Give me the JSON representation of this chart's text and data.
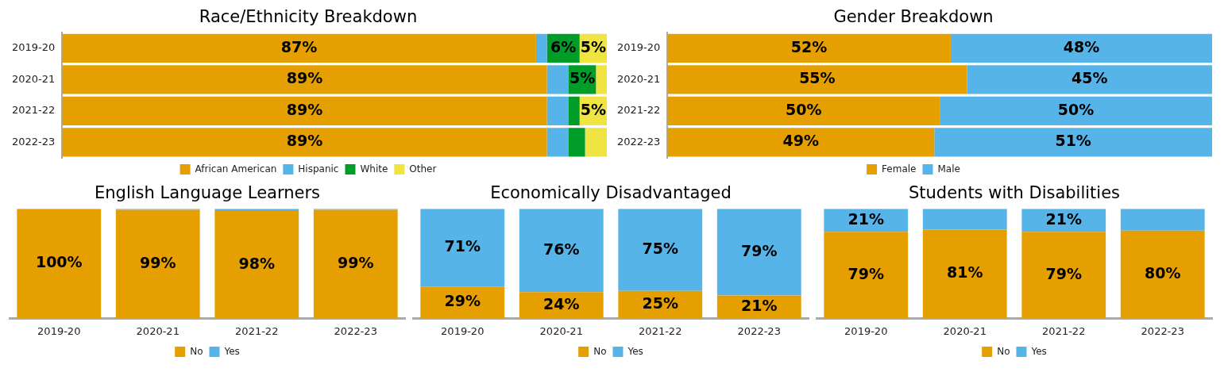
{
  "chart_data": [
    {
      "type": "bar",
      "title": "Race/Ethnicity Breakdown",
      "orientation": "horizontal",
      "stacked": true,
      "categories": [
        "2019-20",
        "2020-21",
        "2021-22",
        "2022-23"
      ],
      "xlim": [
        0,
        100
      ],
      "tick_labels": "y",
      "legend": "bottom",
      "grid": false,
      "series": [
        {
          "name": "African American",
          "color": "#e69f00",
          "values": [
            87,
            89,
            89,
            89
          ],
          "value_labels": [
            "87%",
            "89%",
            "89%",
            "89%"
          ]
        },
        {
          "name": "Hispanic",
          "color": "#56b4e9",
          "values": [
            2,
            4,
            4,
            4
          ],
          "value_labels": [
            null,
            null,
            null,
            null
          ]
        },
        {
          "name": "White",
          "color": "#009e28",
          "values": [
            6,
            5,
            2,
            3
          ],
          "value_labels": [
            "6%",
            "5%",
            null,
            null
          ]
        },
        {
          "name": "Other",
          "color": "#f0e442",
          "values": [
            5,
            2,
            5,
            4
          ],
          "value_labels": [
            "5%",
            null,
            "5%",
            null
          ]
        }
      ]
    },
    {
      "type": "bar",
      "title": "Gender Breakdown",
      "orientation": "horizontal",
      "stacked": true,
      "categories": [
        "2019-20",
        "2020-21",
        "2021-22",
        "2022-23"
      ],
      "xlim": [
        0,
        100
      ],
      "tick_labels": "y",
      "legend": "bottom",
      "grid": false,
      "series": [
        {
          "name": "Female",
          "color": "#e69f00",
          "values": [
            52,
            55,
            50,
            49
          ],
          "value_labels": [
            "52%",
            "55%",
            "50%",
            "49%"
          ]
        },
        {
          "name": "Male",
          "color": "#56b4e9",
          "values": [
            48,
            45,
            50,
            51
          ],
          "value_labels": [
            "48%",
            "45%",
            "50%",
            "51%"
          ]
        }
      ]
    },
    {
      "type": "bar",
      "title": "English Language Learners",
      "stacked": true,
      "categories": [
        "2019-20",
        "2020-21",
        "2021-22",
        "2022-23"
      ],
      "ylim": [
        0,
        100
      ],
      "tick_labels": "x",
      "legend": "bottom",
      "grid": false,
      "series": [
        {
          "name": "No",
          "color": "#e69f00",
          "values": [
            100,
            99,
            98,
            99
          ],
          "value_labels": [
            "100%",
            "99%",
            "98%",
            "99%"
          ]
        },
        {
          "name": "Yes",
          "color": "#56b4e9",
          "values": [
            0,
            1,
            2,
            1
          ],
          "value_labels": [
            null,
            null,
            null,
            null
          ]
        }
      ]
    },
    {
      "type": "bar",
      "title": "Economically Disadvantaged",
      "stacked": true,
      "categories": [
        "2019-20",
        "2020-21",
        "2021-22",
        "2022-23"
      ],
      "ylim": [
        0,
        100
      ],
      "tick_labels": "x",
      "legend": "bottom",
      "grid": false,
      "series": [
        {
          "name": "No",
          "color": "#e69f00",
          "values": [
            29,
            24,
            25,
            21
          ],
          "value_labels": [
            "29%",
            "24%",
            "25%",
            "21%"
          ]
        },
        {
          "name": "Yes",
          "color": "#56b4e9",
          "values": [
            71,
            76,
            75,
            79
          ],
          "value_labels": [
            "71%",
            "76%",
            "75%",
            "79%"
          ]
        }
      ]
    },
    {
      "type": "bar",
      "title": "Students with Disabilities",
      "stacked": true,
      "categories": [
        "2019-20",
        "2020-21",
        "2021-22",
        "2022-23"
      ],
      "ylim": [
        0,
        100
      ],
      "tick_labels": "x",
      "legend": "bottom",
      "grid": false,
      "series": [
        {
          "name": "No",
          "color": "#e69f00",
          "values": [
            79,
            81,
            79,
            80
          ],
          "value_labels": [
            "79%",
            "81%",
            "79%",
            "80%"
          ]
        },
        {
          "name": "Yes",
          "color": "#56b4e9",
          "values": [
            21,
            19,
            21,
            20
          ],
          "value_labels": [
            "21%",
            null,
            "21%",
            null
          ]
        }
      ]
    }
  ]
}
